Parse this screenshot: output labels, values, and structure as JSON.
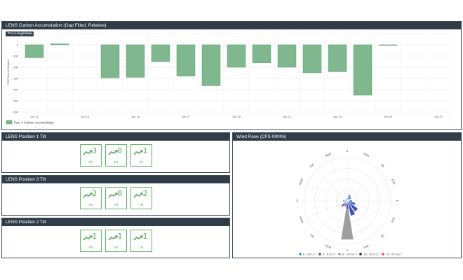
{
  "chart_panel": {
    "title": "LENS Carbon Accumulation (Gap Filled, Relative)",
    "badge": "Processed Data"
  },
  "chart_data": {
    "type": "bar",
    "categories": [
      "Jun 11",
      "Jun 12",
      "Jun 13",
      "Jun 14",
      "Jun 15",
      "Jun 16",
      "Jun 17",
      "Jun 18",
      "Jun 19",
      "Jun 20",
      "Jun 21",
      "Jun 22",
      "Jun 23",
      "Jun 24",
      "Jun 25",
      "Jun 26",
      "Jun 27"
    ],
    "tick_labels": [
      "Jun 11",
      "Jun 13",
      "Jun 15",
      "Jun 17",
      "Jun 19",
      "Jun 21",
      "Jun 23",
      "Jun 25",
      "Jun 27"
    ],
    "series": [
      {
        "name": "Pos. 4 Carbon Accumulation",
        "values": [
          -115,
          8,
          null,
          -295,
          -290,
          -150,
          -280,
          -365,
          -200,
          -160,
          -200,
          -250,
          -240,
          -450,
          -5,
          null,
          null
        ]
      }
    ],
    "ylim": [
      -600,
      100
    ],
    "yticks": [
      100,
      0,
      -100,
      -200,
      -300,
      -400,
      -500,
      -600
    ],
    "ylabel": "LTSC Score Relative",
    "bar_color": "#7fb88e",
    "bar_border": "#4f9a62"
  },
  "tilts": [
    {
      "title": "LENS Position 1 Tilt",
      "cards": [
        {
          "digit": "3",
          "label": "Tilt"
        },
        {
          "digit": "0",
          "label": "Tilt"
        },
        {
          "digit": "1",
          "label": "Tilt"
        }
      ]
    },
    {
      "title": "LENS Position 3 Tilt",
      "cards": [
        {
          "digit": "2",
          "label": "Tilt"
        },
        {
          "digit": "0",
          "label": "Tilt"
        },
        {
          "digit": "2",
          "label": "Tilt"
        }
      ]
    },
    {
      "title": "LENS Position 2 Tilt",
      "cards": [
        {
          "digit": "1",
          "label": "Tilt"
        },
        {
          "digit": "1",
          "label": "Tilt"
        },
        {
          "digit": "1",
          "label": "Tilt"
        }
      ]
    }
  ],
  "wind_rose": {
    "title": "Wind Rose (CFS-00006)",
    "directions": [
      "N",
      "NNE",
      "NE",
      "ENE",
      "E",
      "ESE",
      "SE",
      "SSE",
      "S",
      "SSW",
      "SW",
      "WSW",
      "W",
      "WNW",
      "NW",
      "NNW"
    ],
    "legend": [
      {
        "label": "0 - 3 m s⁻¹",
        "color": "#2196f3"
      },
      {
        "label": "3 - 6 m s⁻¹",
        "color": "#3f51b5"
      },
      {
        "label": "6 - 10 m s⁻¹",
        "color": "#9e9e9e"
      },
      {
        "label": "10 - 15 m s⁻¹",
        "color": "#212121"
      },
      {
        "label": "15 - 20 m s⁻¹",
        "color": "#f44336"
      }
    ]
  }
}
